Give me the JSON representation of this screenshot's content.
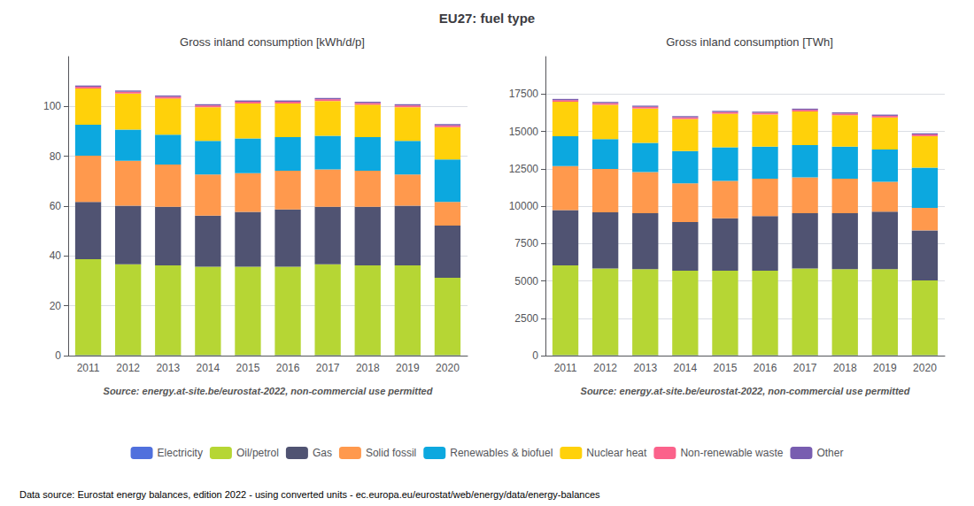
{
  "title": "EU27: fuel type",
  "annotations": [
    "Data source: Eurostat energy balances, edition 2022 - using converted units - ec.europa.eu/eurostat/web/energy/data/energy-balances"
  ],
  "legend": "bottom",
  "chart_data": [
    {
      "type": "bar",
      "title": "Gross inland consumption [kWh/d/p]",
      "annotations": [
        "Source: energy.at-site.be/eurostat-2022, non-commercial use permitted"
      ],
      "stacked": true,
      "grid": true,
      "categories": [
        "2011",
        "2012",
        "2013",
        "2014",
        "2015",
        "2016",
        "2017",
        "2018",
        "2019",
        "2020"
      ],
      "series": [
        {
          "name": "Electricity",
          "values": [
            0.2,
            0.2,
            0.2,
            0.2,
            0.2,
            0.2,
            0.2,
            0.2,
            0.2,
            0.2
          ]
        },
        {
          "name": "Oil/petrol",
          "values": [
            38.5,
            36.5,
            36.0,
            35.5,
            35.5,
            35.5,
            36.5,
            36.0,
            36.0,
            31.0
          ]
        },
        {
          "name": "Gas",
          "values": [
            23.0,
            23.5,
            23.5,
            20.5,
            22.0,
            23.0,
            23.0,
            23.5,
            24.0,
            21.0
          ]
        },
        {
          "name": "Solid fossil",
          "values": [
            18.5,
            18.0,
            17.0,
            16.5,
            15.5,
            15.5,
            15.0,
            14.5,
            12.5,
            9.5
          ]
        },
        {
          "name": "Renewables & biofuel",
          "values": [
            12.5,
            12.5,
            12.0,
            13.5,
            14.0,
            13.5,
            13.5,
            13.5,
            13.5,
            17.0
          ]
        },
        {
          "name": "Nuclear heat",
          "values": [
            14.5,
            14.5,
            14.5,
            13.5,
            14.0,
            13.5,
            14.0,
            13.0,
            13.5,
            13.0
          ]
        },
        {
          "name": "Non-renewable waste",
          "values": [
            0.7,
            0.7,
            0.7,
            0.7,
            0.7,
            0.7,
            0.7,
            0.7,
            0.7,
            0.7
          ]
        },
        {
          "name": "Other",
          "values": [
            0.5,
            0.5,
            0.5,
            0.5,
            0.5,
            0.5,
            0.5,
            0.5,
            0.5,
            0.5
          ]
        }
      ],
      "ylim": [
        0,
        120
      ],
      "yticks": [
        0,
        20,
        40,
        60,
        80,
        100
      ]
    },
    {
      "type": "bar",
      "title": "Gross inland consumption [TWh]",
      "annotations": [
        "Source: energy.at-site.be/eurostat-2022, non-commercial use permitted"
      ],
      "stacked": true,
      "grid": true,
      "categories": [
        "2011",
        "2012",
        "2013",
        "2014",
        "2015",
        "2016",
        "2017",
        "2018",
        "2019",
        "2020"
      ],
      "series": [
        {
          "name": "Electricity",
          "values": [
            30,
            30,
            30,
            30,
            30,
            30,
            30,
            30,
            30,
            30
          ]
        },
        {
          "name": "Oil/petrol",
          "values": [
            6000,
            5800,
            5750,
            5650,
            5650,
            5650,
            5800,
            5750,
            5750,
            5000
          ]
        },
        {
          "name": "Gas",
          "values": [
            3700,
            3750,
            3750,
            3250,
            3500,
            3650,
            3700,
            3750,
            3850,
            3350
          ]
        },
        {
          "name": "Solid fossil",
          "values": [
            2950,
            2900,
            2750,
            2600,
            2500,
            2500,
            2400,
            2300,
            2000,
            1500
          ]
        },
        {
          "name": "Renewables & biofuel",
          "values": [
            2000,
            2000,
            1950,
            2150,
            2250,
            2150,
            2150,
            2150,
            2150,
            2700
          ]
        },
        {
          "name": "Nuclear heat",
          "values": [
            2300,
            2300,
            2300,
            2150,
            2250,
            2150,
            2250,
            2100,
            2150,
            2100
          ]
        },
        {
          "name": "Non-renewable waste",
          "values": [
            110,
            110,
            110,
            110,
            110,
            110,
            110,
            110,
            110,
            110
          ]
        },
        {
          "name": "Other",
          "values": [
            80,
            80,
            80,
            80,
            80,
            80,
            80,
            80,
            80,
            80
          ]
        }
      ],
      "ylim": [
        0,
        20000
      ],
      "yticks": [
        0,
        2500,
        5000,
        7500,
        10000,
        12500,
        15000,
        17500
      ]
    }
  ]
}
